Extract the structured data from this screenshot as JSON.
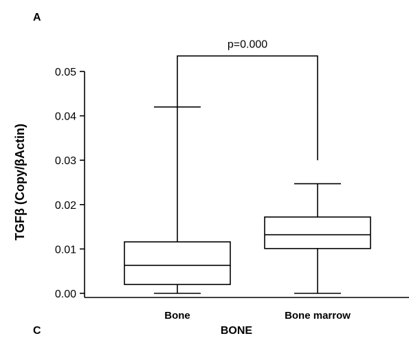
{
  "panel_labels": {
    "top": "A",
    "bottom": "C"
  },
  "chart_data": {
    "type": "box",
    "title": "",
    "xlabel": "BONE",
    "ylabel": "TGFβ (Copy/βActin)",
    "ylim": [
      0.0,
      0.05
    ],
    "yticks": [
      "0.00",
      "0.01",
      "0.02",
      "0.03",
      "0.04",
      "0.05"
    ],
    "categories": [
      "Bone",
      "Bone marrow"
    ],
    "boxes": [
      {
        "category": "Bone",
        "min": 0.0,
        "q1": 0.002,
        "median": 0.0063,
        "q3": 0.0116,
        "max": 0.042
      },
      {
        "category": "Bone marrow",
        "min": 0.0,
        "q1": 0.0101,
        "median": 0.0132,
        "q3": 0.0172,
        "max": 0.0247
      }
    ],
    "annotation": {
      "text": "p=0.000",
      "bracket_top": 0.0535,
      "left_end": 0.042,
      "right_end": 0.03
    },
    "grid": false,
    "legend": "none"
  }
}
